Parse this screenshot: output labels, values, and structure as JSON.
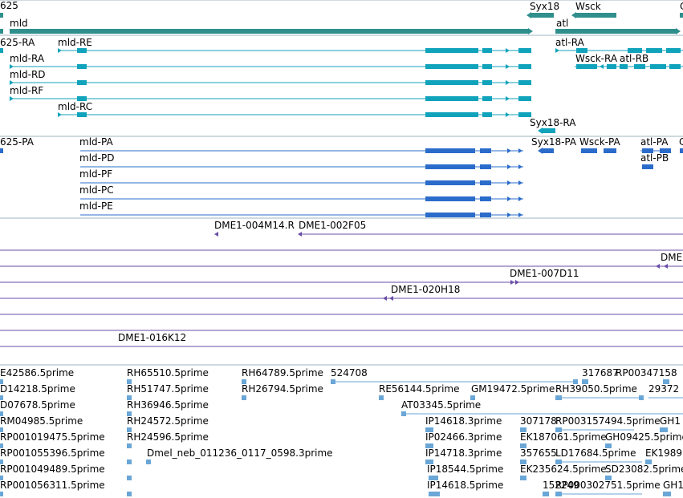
{
  "colors": {
    "gene": "#2f8f8c",
    "transcript": "#11a3bb",
    "protein": "#2b6ccb",
    "clone": "#6a4ea8",
    "est": "#6aa6d6",
    "divider": "#9fb6c2"
  },
  "tracks": {
    "genes": {
      "labels": [
        {
          "id": "gene-625",
          "text": "625"
        },
        {
          "id": "gene-mld",
          "text": "mld"
        },
        {
          "id": "gene-syx18",
          "text": "Syx18"
        },
        {
          "id": "gene-wsck",
          "text": "Wsck"
        },
        {
          "id": "gene-atl",
          "text": "atl"
        },
        {
          "id": "gene-c",
          "text": "C"
        }
      ]
    },
    "transcripts": {
      "labels": [
        {
          "id": "tx-625-ra",
          "text": "625-RA"
        },
        {
          "id": "tx-mld-re",
          "text": "mld-RE"
        },
        {
          "id": "tx-mld-ra",
          "text": "mld-RA"
        },
        {
          "id": "tx-mld-rd",
          "text": "mld-RD"
        },
        {
          "id": "tx-mld-rf",
          "text": "mld-RF"
        },
        {
          "id": "tx-mld-rc",
          "text": "mld-RC"
        },
        {
          "id": "tx-atl-ra",
          "text": "atl-RA"
        },
        {
          "id": "tx-wsck-ra",
          "text": "Wsck-RA"
        },
        {
          "id": "tx-atl-rb",
          "text": "atl-RB"
        },
        {
          "id": "tx-syx18-ra",
          "text": "Syx18-RA"
        }
      ]
    },
    "proteins": {
      "labels": [
        {
          "id": "pr-625-pa",
          "text": "625-PA"
        },
        {
          "id": "pr-mld-pa",
          "text": "mld-PA"
        },
        {
          "id": "pr-mld-pd",
          "text": "mld-PD"
        },
        {
          "id": "pr-mld-pf",
          "text": "mld-PF"
        },
        {
          "id": "pr-mld-pc",
          "text": "mld-PC"
        },
        {
          "id": "pr-mld-pe",
          "text": "mld-PE"
        },
        {
          "id": "pr-syx18-pa",
          "text": "Syx18-PA"
        },
        {
          "id": "pr-wsck-pa",
          "text": "Wsck-PA"
        },
        {
          "id": "pr-atl-pa",
          "text": "atl-PA"
        },
        {
          "id": "pr-atl-pb",
          "text": "atl-PB"
        },
        {
          "id": "pr-c",
          "text": "C"
        }
      ]
    },
    "clones": {
      "labels": [
        {
          "id": "cl-004m14",
          "text": "DME1-004M14.R"
        },
        {
          "id": "cl-002f05",
          "text": "DME1-002F05"
        },
        {
          "id": "cl-dme-edge",
          "text": "DME"
        },
        {
          "id": "cl-007d11",
          "text": "DME1-007D11"
        },
        {
          "id": "cl-020h18",
          "text": "DME1-020H18"
        },
        {
          "id": "cl-016k12",
          "text": "DME1-016K12"
        }
      ]
    },
    "ests": {
      "labels": [
        {
          "id": "est-e42586",
          "text": "E42586.5prime"
        },
        {
          "id": "est-rh65510",
          "text": "RH65510.5prime"
        },
        {
          "id": "est-rh64789",
          "text": "RH64789.5prime"
        },
        {
          "id": "est-524708",
          "text": "524708"
        },
        {
          "id": "est-317687",
          "text": "317687"
        },
        {
          "id": "est-rp00347158",
          "text": "RP00347158"
        },
        {
          "id": "est-d14218",
          "text": "D14218.5prime"
        },
        {
          "id": "est-rh51747",
          "text": "RH51747.5prime"
        },
        {
          "id": "est-rh26794",
          "text": "RH26794.5prime"
        },
        {
          "id": "est-re56144",
          "text": "RE56144.5prime"
        },
        {
          "id": "est-gm19472",
          "text": "GM19472.5prime"
        },
        {
          "id": "est-rh39050",
          "text": "RH39050.5prime"
        },
        {
          "id": "est-29372",
          "text": "29372"
        },
        {
          "id": "est-d07678",
          "text": "D07678.5prime"
        },
        {
          "id": "est-rh36946",
          "text": "RH36946.5prime"
        },
        {
          "id": "est-at03345",
          "text": "AT03345.5prime"
        },
        {
          "id": "est-rm04985",
          "text": "RM04985.5prime"
        },
        {
          "id": "est-rh24572",
          "text": "RH24572.5prime"
        },
        {
          "id": "est-ip14618-3",
          "text": "IP14618.3prime"
        },
        {
          "id": "est-307178",
          "text": "307178"
        },
        {
          "id": "est-rp003157494",
          "text": "RP003157494.5prime"
        },
        {
          "id": "est-gh1a",
          "text": "GH1"
        },
        {
          "id": "est-rp001019475",
          "text": "RP001019475.5prime"
        },
        {
          "id": "est-rh24596",
          "text": "RH24596.5prime"
        },
        {
          "id": "est-ip02466",
          "text": "IP02466.3prime"
        },
        {
          "id": "est-ek187061",
          "text": "EK187061.5prime"
        },
        {
          "id": "est-gh09425",
          "text": "GH09425.5prime"
        },
        {
          "id": "est-rp001055396",
          "text": "RP001055396.5prime"
        },
        {
          "id": "est-dmel-neb",
          "text": "Dmel_neb_011236_0117_0598.3prime"
        },
        {
          "id": "est-ip14718",
          "text": "IP14718.3prime"
        },
        {
          "id": "est-357655",
          "text": "357655"
        },
        {
          "id": "est-ld17684",
          "text": "LD17684.5prime"
        },
        {
          "id": "est-ek1989",
          "text": "EK1989"
        },
        {
          "id": "est-rp001049489",
          "text": "RP001049489.5prime"
        },
        {
          "id": "est-ip18544",
          "text": "IP18544.5prime"
        },
        {
          "id": "est-ek235624",
          "text": "EK235624.5prime"
        },
        {
          "id": "est-sd23082",
          "text": "SD23082.5prime"
        },
        {
          "id": "est-rp001056311",
          "text": "RP001056311.5prime"
        },
        {
          "id": "est-ip14618-5",
          "text": "IP14618.5prime"
        },
        {
          "id": "est-152249",
          "text": "152249"
        },
        {
          "id": "est-rp000302751",
          "text": "RP000302751.5prime"
        },
        {
          "id": "est-gh1b",
          "text": "GH1"
        }
      ]
    }
  }
}
